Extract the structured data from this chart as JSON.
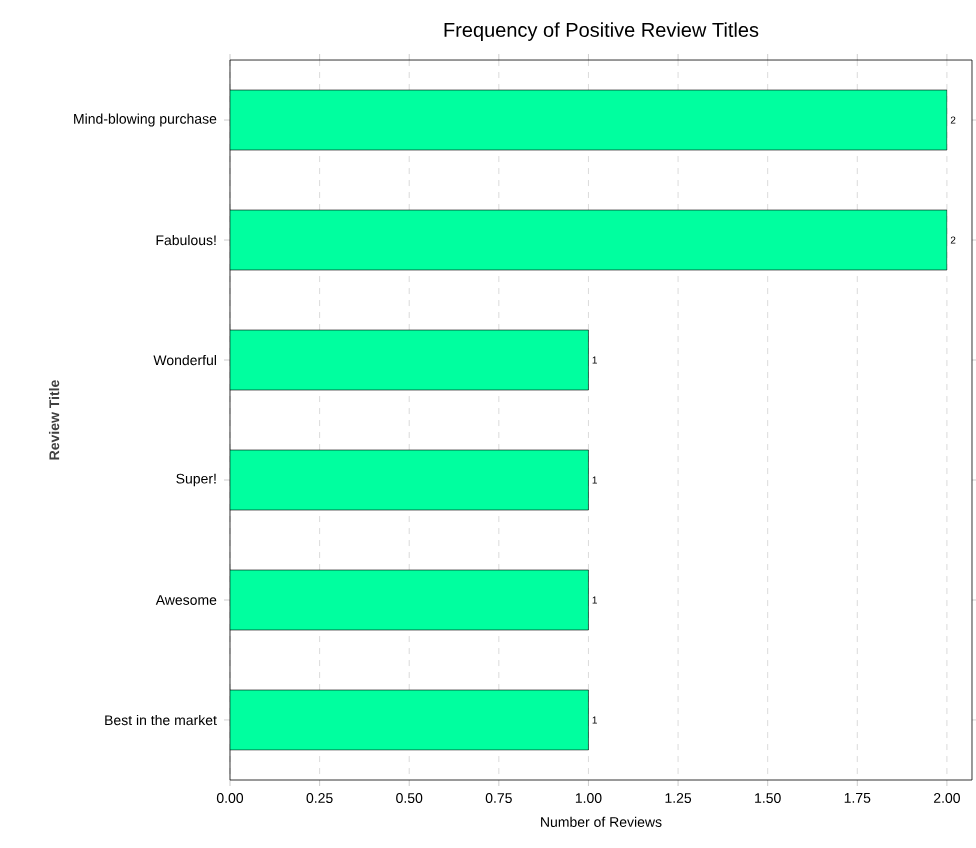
{
  "chart_data": {
    "type": "bar",
    "orientation": "horizontal",
    "title": "Frequency of Positive Review Titles",
    "xlabel": "Number of Reviews",
    "ylabel": "Review Title",
    "categories": [
      "Mind-blowing purchase",
      "Fabulous!",
      "Wonderful",
      "Super!",
      "Awesome",
      "Best in the market"
    ],
    "values": [
      2,
      2,
      1,
      1,
      1,
      1
    ],
    "color": "#00ff9f",
    "data_labels": true,
    "grid": "x",
    "xlim": [
      0,
      2.07
    ],
    "xticks": [
      {
        "value": 0,
        "label": "0.00"
      },
      {
        "value": 0.25,
        "label": "0.25"
      },
      {
        "value": 0.5,
        "label": "0.50"
      },
      {
        "value": 0.75,
        "label": "0.75"
      },
      {
        "value": 1,
        "label": "1.00"
      },
      {
        "value": 1.25,
        "label": "1.25"
      },
      {
        "value": 1.5,
        "label": "1.50"
      },
      {
        "value": 1.75,
        "label": "1.75"
      },
      {
        "value": 2,
        "label": "2.00"
      }
    ]
  }
}
